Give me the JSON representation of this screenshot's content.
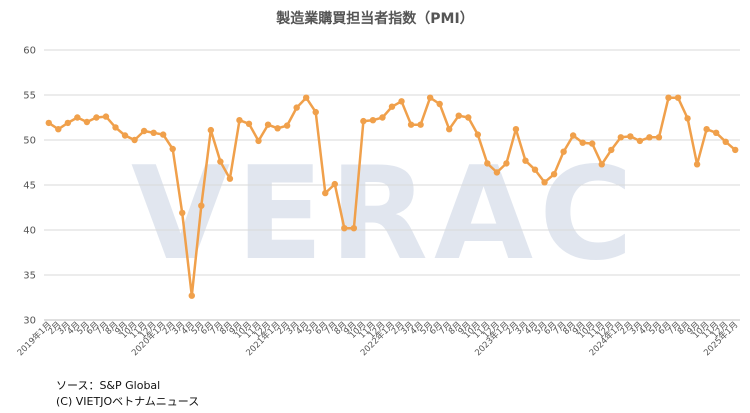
{
  "chart_data": {
    "type": "line",
    "title": "製造業購買担当者指数（PMI）",
    "watermark": "VERAC",
    "ylim": [
      30,
      60
    ],
    "yticks": [
      30,
      35,
      40,
      45,
      50,
      55,
      60
    ],
    "grid": true,
    "color": "#f0a04b",
    "categories": [
      "2019年1月",
      "2月",
      "3月",
      "4月",
      "5月",
      "6月",
      "7月",
      "8月",
      "9月",
      "10月",
      "11月",
      "12月",
      "2020年1月",
      "2月",
      "3月",
      "4月",
      "5月",
      "6月",
      "7月",
      "8月",
      "9月",
      "10月",
      "11月",
      "12月",
      "2021年1月",
      "2月",
      "3月",
      "4月",
      "5月",
      "6月",
      "7月",
      "8月",
      "9月",
      "10月",
      "11月",
      "12月",
      "2022年1月",
      "2月",
      "3月",
      "4月",
      "5月",
      "6月",
      "7月",
      "8月",
      "9月",
      "10月",
      "11月",
      "12月",
      "2023年1月",
      "2月",
      "3月",
      "4月",
      "5月",
      "6月",
      "7月",
      "8月",
      "9月",
      "10月",
      "11月",
      "12月",
      "2024年1月",
      "2月",
      "3月",
      "4月",
      "5月",
      "6月",
      "7月",
      "8月",
      "9月",
      "10月",
      "11月",
      "12月",
      "2025年1月"
    ],
    "values": [
      51.9,
      51.2,
      51.9,
      52.5,
      52.0,
      52.5,
      52.6,
      51.4,
      50.5,
      50.0,
      51.0,
      50.8,
      50.6,
      49.0,
      41.9,
      32.7,
      42.7,
      51.1,
      47.6,
      45.7,
      52.2,
      51.8,
      49.9,
      51.7,
      51.3,
      51.6,
      53.6,
      54.7,
      53.1,
      44.1,
      45.1,
      40.2,
      40.2,
      52.1,
      52.2,
      52.5,
      53.7,
      54.3,
      51.7,
      51.7,
      54.7,
      54.0,
      51.2,
      52.7,
      52.5,
      50.6,
      47.4,
      46.4,
      47.4,
      51.2,
      47.7,
      46.7,
      45.3,
      46.2,
      48.7,
      50.5,
      49.7,
      49.6,
      47.3,
      48.9,
      50.3,
      50.4,
      49.9,
      50.3,
      50.3,
      54.7,
      54.7,
      52.4,
      47.3,
      51.2,
      50.8,
      49.8,
      48.9
    ]
  },
  "footer": {
    "source": "ソース：S&P Global",
    "copyright": "(C) VIETJOベトナムニュース"
  }
}
